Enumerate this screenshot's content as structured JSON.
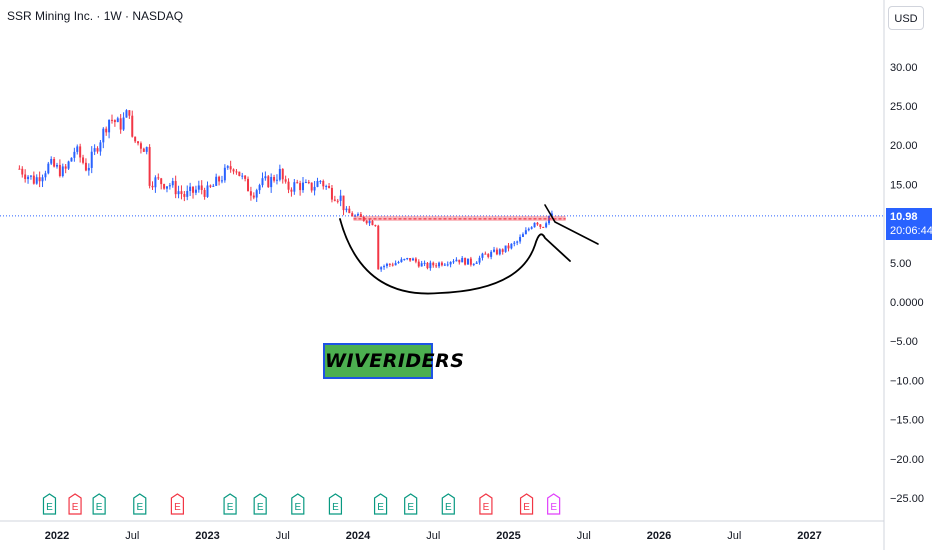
{
  "header": {
    "title": "SSR Mining Inc. · 1W · NASDAQ"
  },
  "currency_label": "USD",
  "last_price": {
    "price": "10.98",
    "countdown": "20:06:44"
  },
  "watermark_text": "WIVERIDERS",
  "colors": {
    "up": "#2962ff",
    "down": "#f23645",
    "resistance": "#f23645",
    "price_line": "#2962ff",
    "earnings_green": "#089981",
    "earnings_red": "#f23645",
    "earnings_pink": "#e040fb",
    "drawing": "#000000"
  },
  "chart_data": {
    "type": "candlestick",
    "title": "SSR Mining Inc. · 1W · NASDAQ",
    "y_axis": {
      "ticks": [
        "30.00",
        "25.00",
        "20.00",
        "15.00",
        "5.00",
        "0.0000",
        "−5.00",
        "−10.00",
        "−15.00",
        "−20.00",
        "−25.00"
      ],
      "range": [
        -27,
        36
      ]
    },
    "x_axis": {
      "ticks": [
        {
          "label": "2022",
          "bold": true
        },
        {
          "label": "Jul",
          "bold": false
        },
        {
          "label": "2023",
          "bold": true
        },
        {
          "label": "Jul",
          "bold": false
        },
        {
          "label": "2024",
          "bold": true
        },
        {
          "label": "Jul",
          "bold": false
        },
        {
          "label": "2025",
          "bold": true
        },
        {
          "label": "Jul",
          "bold": false
        },
        {
          "label": "2026",
          "bold": true
        },
        {
          "label": "Jul",
          "bold": false
        },
        {
          "label": "2027",
          "bold": true
        }
      ]
    },
    "price_path": [
      [
        2021.75,
        17.0
      ],
      [
        2021.85,
        15.5
      ],
      [
        2021.95,
        17.5
      ],
      [
        2022.05,
        16.5
      ],
      [
        2022.12,
        19.5
      ],
      [
        2022.2,
        17.0
      ],
      [
        2022.28,
        20.5
      ],
      [
        2022.35,
        23.5
      ],
      [
        2022.42,
        22.5
      ],
      [
        2022.48,
        24.5
      ],
      [
        2022.52,
        20.5
      ],
      [
        2022.6,
        19.5
      ],
      [
        2022.65,
        15.5
      ],
      [
        2022.75,
        15.0
      ],
      [
        2022.85,
        13.5
      ],
      [
        2022.95,
        14.5
      ],
      [
        2023.0,
        14.0
      ],
      [
        2023.05,
        15.0
      ],
      [
        2023.12,
        16.5
      ],
      [
        2023.18,
        17.5
      ],
      [
        2023.25,
        15.0
      ],
      [
        2023.3,
        14.0
      ],
      [
        2023.35,
        15.0
      ],
      [
        2023.42,
        15.5
      ],
      [
        2023.48,
        16.5
      ],
      [
        2023.52,
        14.5
      ],
      [
        2023.6,
        15.0
      ],
      [
        2023.68,
        14.5
      ],
      [
        2023.75,
        15.5
      ],
      [
        2023.82,
        14.0
      ],
      [
        2023.88,
        13.5
      ],
      [
        2023.92,
        11.5
      ],
      [
        2023.97,
        11.0
      ],
      [
        2024.05,
        10.5
      ],
      [
        2024.12,
        10.0
      ],
      [
        2024.15,
        4.5
      ],
      [
        2024.25,
        5.0
      ],
      [
        2024.35,
        5.5
      ],
      [
        2024.45,
        4.5
      ],
      [
        2024.55,
        5.0
      ],
      [
        2024.65,
        5.5
      ],
      [
        2024.75,
        5.0
      ],
      [
        2024.85,
        6.0
      ],
      [
        2024.95,
        6.5
      ],
      [
        2025.05,
        7.5
      ],
      [
        2025.12,
        9.0
      ],
      [
        2025.18,
        10.5
      ],
      [
        2025.22,
        9.5
      ],
      [
        2025.27,
        11.0
      ],
      [
        2025.3,
        10.98
      ]
    ],
    "resistance_level": 10.6,
    "current_price": 10.98,
    "earnings_markers": [
      {
        "x": 2021.95,
        "type": "green"
      },
      {
        "x": 2022.12,
        "type": "red"
      },
      {
        "x": 2022.28,
        "type": "green"
      },
      {
        "x": 2022.55,
        "type": "green"
      },
      {
        "x": 2022.8,
        "type": "red"
      },
      {
        "x": 2023.15,
        "type": "green"
      },
      {
        "x": 2023.35,
        "type": "green"
      },
      {
        "x": 2023.6,
        "type": "green"
      },
      {
        "x": 2023.85,
        "type": "green"
      },
      {
        "x": 2024.15,
        "type": "green"
      },
      {
        "x": 2024.35,
        "type": "green"
      },
      {
        "x": 2024.6,
        "type": "green"
      },
      {
        "x": 2024.85,
        "type": "red"
      },
      {
        "x": 2025.12,
        "type": "red"
      },
      {
        "x": 2025.3,
        "type": "pink"
      }
    ],
    "earnings_label": "E"
  }
}
